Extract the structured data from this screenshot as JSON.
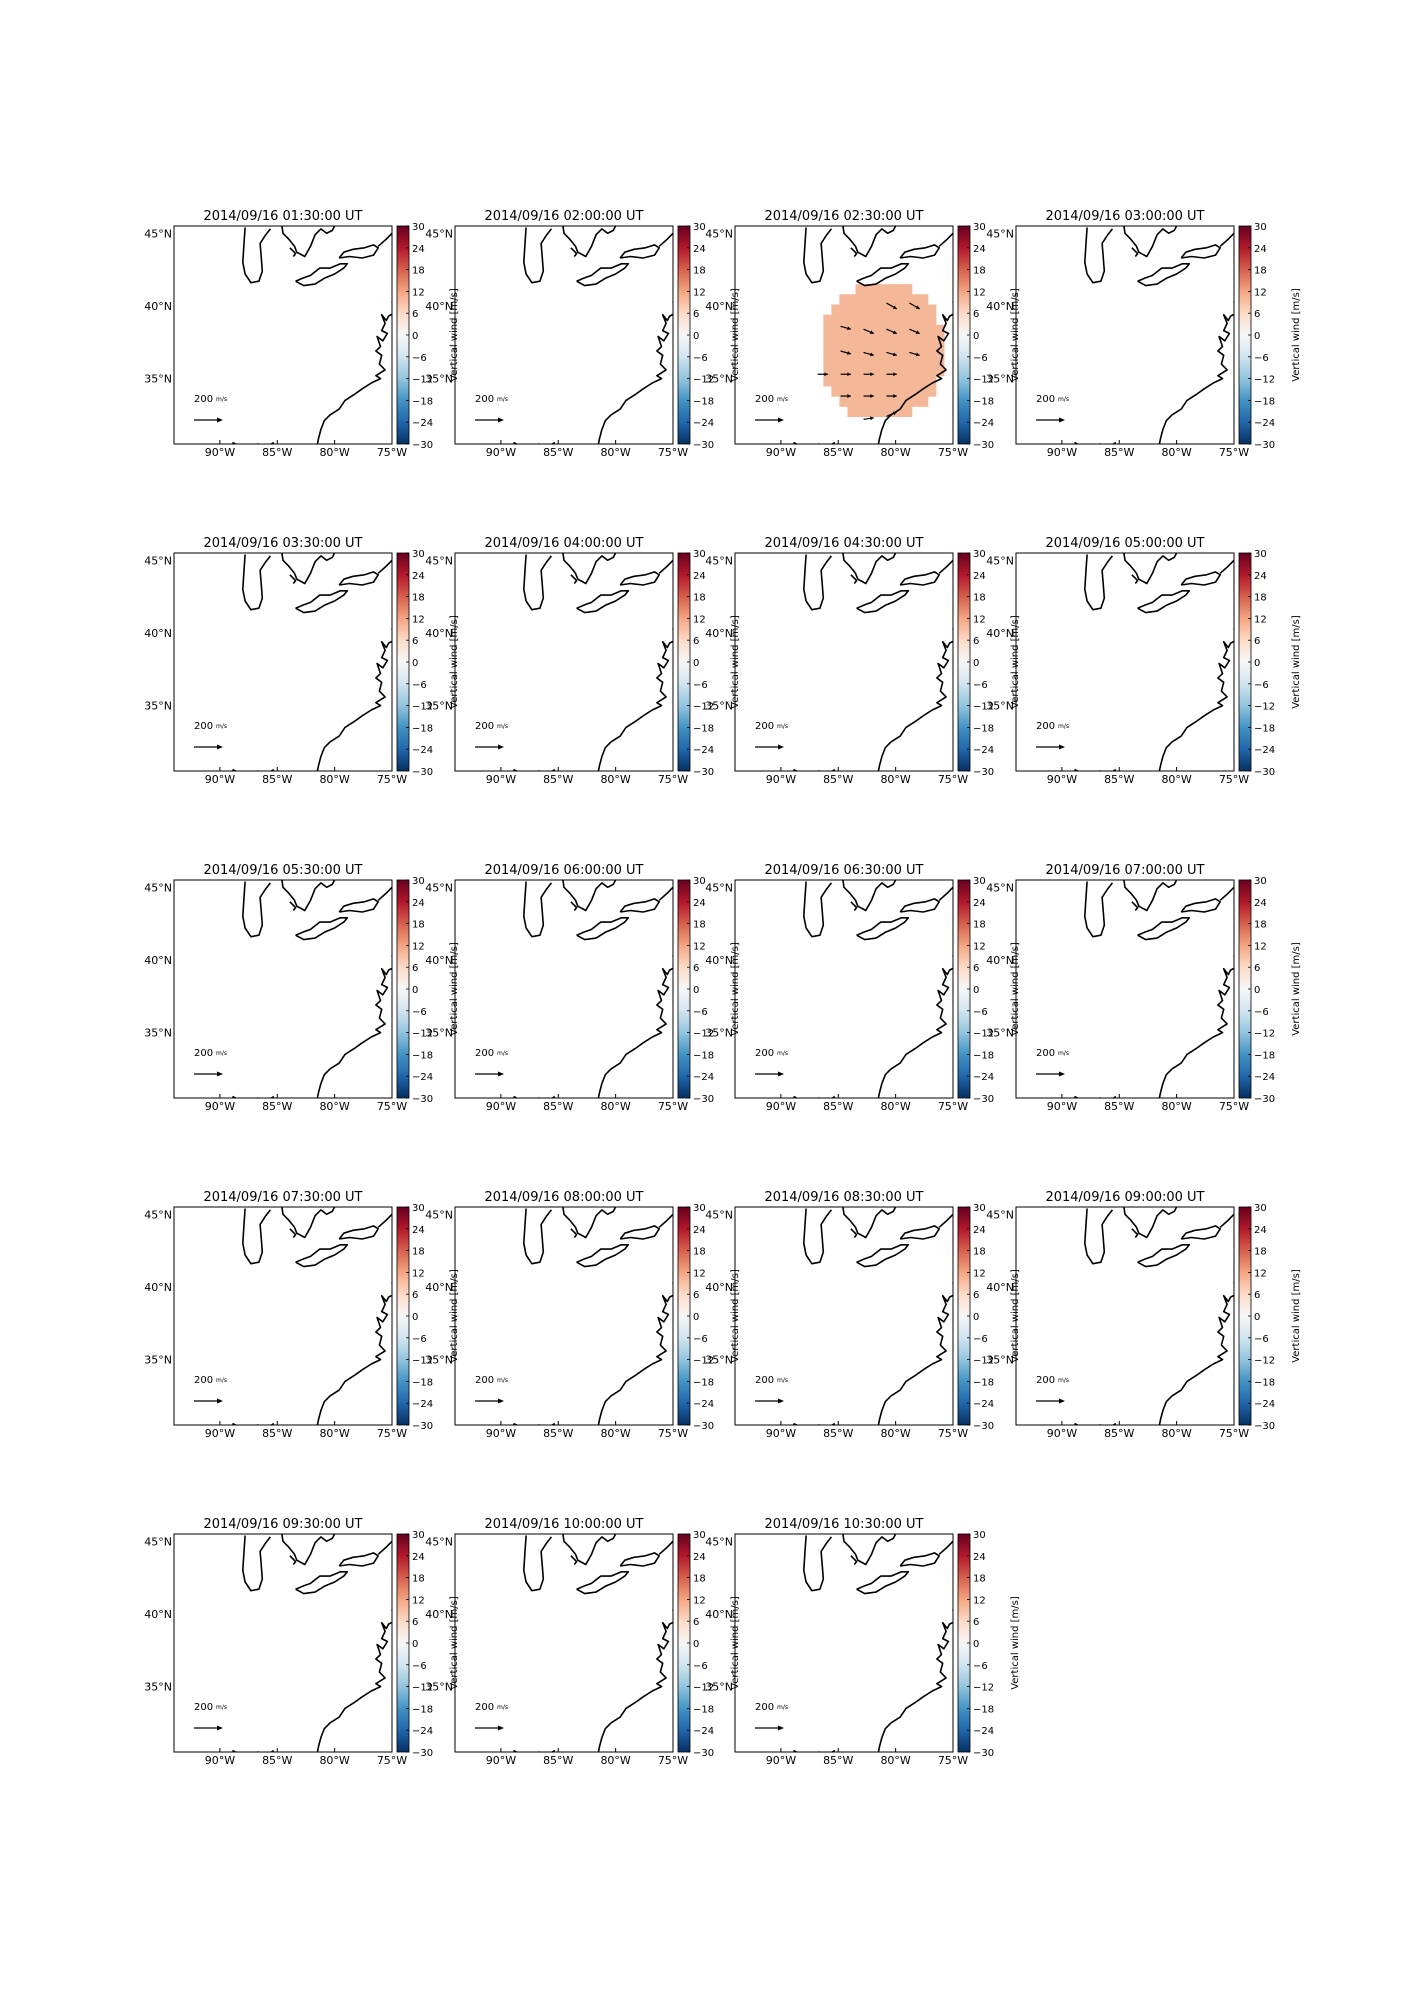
{
  "colors": {
    "colormap": [
      "#053061",
      "#2166ac",
      "#4393c3",
      "#92c5de",
      "#d1e5f0",
      "#f7f7f7",
      "#fddbc7",
      "#f4a582",
      "#d6604d",
      "#b2182b",
      "#67001f"
    ],
    "patch": "#f4b898",
    "coast": "#000000"
  },
  "colorbar": {
    "label": "Vertical wind [m/s]",
    "ticks": [
      "30",
      "24",
      "18",
      "12",
      "6",
      "0",
      "−6",
      "−12",
      "−18",
      "−24",
      "−30"
    ]
  },
  "reference_arrow_label": "200",
  "reference_arrow_unit": "m/s",
  "chart_data": {
    "type": "heatmap",
    "x_ticks": [
      "90°W",
      "85°W",
      "80°W",
      "75°W"
    ],
    "y_ticks": [
      "45°N",
      "40°N",
      "35°N"
    ],
    "xlim": [
      -94,
      -75
    ],
    "ylim": [
      30.5,
      45.5
    ],
    "clim": [
      -30,
      30
    ],
    "panels": [
      {
        "title": "2014/09/16 01:30:00 UT"
      },
      {
        "title": "2014/09/16 02:00:00 UT"
      },
      {
        "title": "2014/09/16 02:30:00 UT",
        "vertical_wind_patch": {
          "value": 12,
          "center_lon": -81.5,
          "center_lat": 36.5,
          "radius_deg": 5.5
        }
      },
      {
        "title": "2014/09/16 03:00:00 UT"
      },
      {
        "title": "2014/09/16 03:30:00 UT"
      },
      {
        "title": "2014/09/16 04:00:00 UT"
      },
      {
        "title": "2014/09/16 04:30:00 UT"
      },
      {
        "title": "2014/09/16 05:00:00 UT"
      },
      {
        "title": "2014/09/16 05:30:00 UT"
      },
      {
        "title": "2014/09/16 06:00:00 UT"
      },
      {
        "title": "2014/09/16 06:30:00 UT"
      },
      {
        "title": "2014/09/16 07:00:00 UT"
      },
      {
        "title": "2014/09/16 07:30:00 UT"
      },
      {
        "title": "2014/09/16 08:00:00 UT"
      },
      {
        "title": "2014/09/16 08:30:00 UT"
      },
      {
        "title": "2014/09/16 09:00:00 UT"
      },
      {
        "title": "2014/09/16 09:30:00 UT"
      },
      {
        "title": "2014/09/16 10:00:00 UT"
      },
      {
        "title": "2014/09/16 10:30:00 UT"
      }
    ]
  }
}
